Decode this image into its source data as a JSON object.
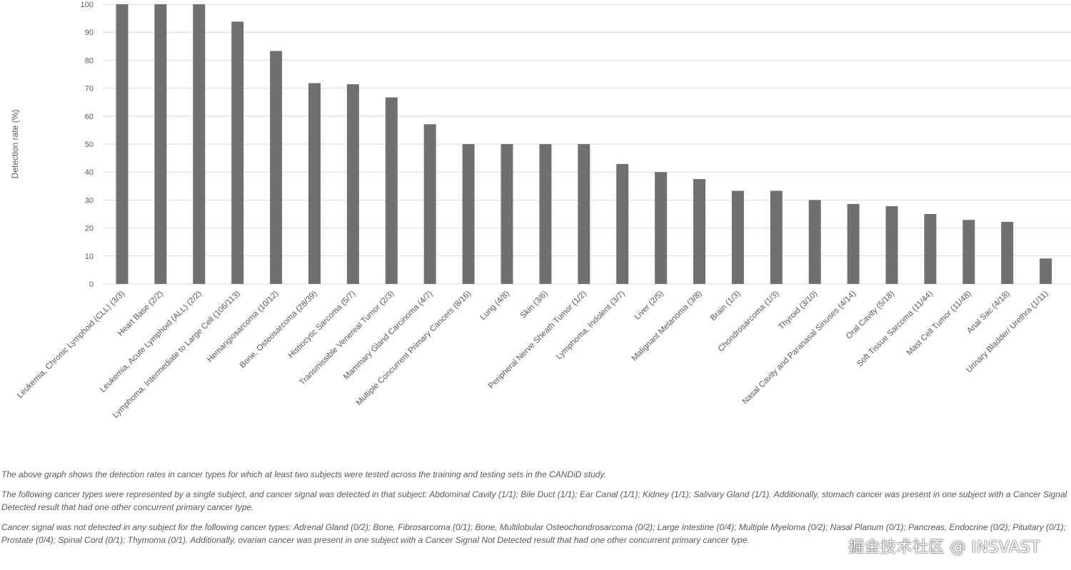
{
  "chart_data": {
    "type": "bar",
    "ylabel": "Detection rate (%)",
    "ylim": [
      0,
      100
    ],
    "yticks": [
      0,
      10,
      20,
      30,
      40,
      50,
      60,
      70,
      80,
      90,
      100
    ],
    "grid": true,
    "bar_color": "#707070",
    "categories": [
      "Leukemia, Chronic Lymphoid (CLL) (3/3)",
      "Heart Base (2/2)",
      "Leukemia, Acute Lymphoid (ALL) (2/2)",
      "Lymphoma, Intermediate to Large Cell (106/113)",
      "Hemangiosarcoma (10/12)",
      "Bone, Osteosarcoma (28/39)",
      "Histiocytic Sarcoma (5/7)",
      "Transmissible Venereal Tumor (2/3)",
      "Mammary Gland Carcinoma (4/7)",
      "Multiple Concurrent Primary Cancers (8/16)",
      "Lung (4/8)",
      "Skin (3/6)",
      "Peripheral Nerve Sheath Tumor (1/2)",
      "Lymphoma, Indolent (3/7)",
      "Liver (2/5)",
      "Malignant Melanoma (3/8)",
      "Brain (1/3)",
      "Chondrosarcoma (1/3)",
      "Thyroid (3/10)",
      "Nasal Cavity and Paranasal Sinuses (4/14)",
      "Oral Cavity (5/18)",
      "Soft Tissue Sarcoma (11/44)",
      "Mast Cell Tumor (11/48)",
      "Anal Sac (4/18)",
      "Urinary Bladder/ Urethra (1/11)"
    ],
    "values": [
      100,
      100,
      100,
      93.8,
      83.3,
      71.8,
      71.4,
      66.7,
      57.1,
      50,
      50,
      50,
      50,
      42.9,
      40,
      37.5,
      33.3,
      33.3,
      30,
      28.6,
      27.8,
      25,
      22.9,
      22.2,
      9.1
    ]
  },
  "footnotes": {
    "p1": "The above graph shows the  detection rates in cancer  types for which at least two subjects were tested across the training and testing sets in the CANDiD study.",
    "p2": "The following cancer types were represented by a single subject, and cancer  signal was detected in that subject: Abdominal Cavity (1/1); Bile Duct  (1/1); Ear Canal  (1/1); Kidney (1/1); Salivary Gland  (1/1). Additionally, stomach cancer was present in one subject with a  Cancer Signal Detected result that had one other concurrent  primary cancer  type.",
    "p3": "Cancer signal was not detected in any subject for the following cancer types: Adrenal Gland (0/2); Bone, Fibrosarcoma (0/1); Bone, Multilobular Osteochondrosarcoma (0/2); Large Intestine (0/4); Multiple Myeloma (0/2); Nasal Planum (0/1); Pancreas,  Endocrine (0/2); Pituitary (0/1); Prostate (0/4); Spinal Cord (0/1); Thymoma (0/1). Additionally, ovarian cancer was present in one subject with a Cancer  Signal Not Detected result that had one other concurrent  primary cancer  type."
  },
  "watermark": "掘金技术社区 @ INSVAST"
}
